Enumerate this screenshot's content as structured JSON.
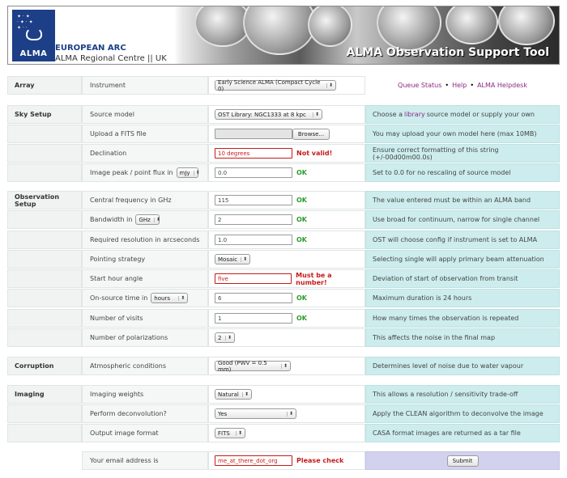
{
  "banner": {
    "logo": "ALMA",
    "arc_line1": "EUROPEAN ARC",
    "arc_line2": "ALMA Regional Centre || UK",
    "title": "ALMA Observation Support Tool"
  },
  "links": {
    "queue": "Queue Status",
    "help": "Help",
    "helpdesk": "ALMA Helpdesk",
    "link_color": "#8b2a85"
  },
  "sections": {
    "array": "Array",
    "sky": "Sky Setup",
    "obs": "Observation Setup",
    "corruption": "Corruption",
    "imaging": "Imaging"
  },
  "fields": {
    "instrument": {
      "label": "Instrument",
      "value": "Early Science ALMA (Compact Cycle 0)"
    },
    "source_model": {
      "label": "Source model",
      "value": "OST Library: NGC1333 at 8 kpc",
      "help_pre": "Choose a ",
      "help_link": "library",
      "help_post": " source model or supply your own"
    },
    "fits": {
      "label": "Upload a FITS file",
      "button": "Browse...",
      "help": "You may upload your own model here (max 10MB)"
    },
    "declination": {
      "label": "Declination",
      "value": "10 degrees",
      "status": "Not valid!",
      "help": "Ensure correct formatting of this string (+/-00d00m00.0s)"
    },
    "peak": {
      "label": "Image peak / point flux in",
      "unit": "mJy",
      "value": "0.0",
      "status": "OK",
      "help": "Set to 0.0 for no rescaling of source model"
    },
    "freq": {
      "label": "Central frequency in GHz",
      "value": "115",
      "status": "OK",
      "help": "The value entered must be within an ALMA band"
    },
    "bandwidth": {
      "label": "Bandwidth in",
      "unit": "GHz",
      "value": "2",
      "status": "OK",
      "help": "Use broad for continuum, narrow for single channel"
    },
    "resolution": {
      "label": "Required resolution in arcseconds",
      "value": "1.0",
      "status": "OK",
      "help": "OST will choose config if instrument is set to ALMA"
    },
    "pointing": {
      "label": "Pointing strategy",
      "value": "Mosaic",
      "help": "Selecting single will apply primary beam attenuation"
    },
    "hour_angle": {
      "label": "Start hour angle",
      "value": "five",
      "status": "Must be a number!",
      "help": "Deviation of start of observation from transit"
    },
    "onsource": {
      "label": "On-source time in",
      "unit": "hours",
      "value": "6",
      "status": "OK",
      "help": "Maximum duration is 24 hours"
    },
    "visits": {
      "label": "Number of visits",
      "value": "1",
      "status": "OK",
      "help": "How many times the observation is repeated"
    },
    "polarizations": {
      "label": "Number of polarizations",
      "value": "2",
      "help": "This affects the noise in the final map"
    },
    "atmosphere": {
      "label": "Atmospheric conditions",
      "value": "Good (PWV = 0.5 mm)",
      "help": "Determines level of noise due to water vapour"
    },
    "weights": {
      "label": "Imaging weights",
      "value": "Natural",
      "help": "This allows a resolution / sensitivity trade-off"
    },
    "deconv": {
      "label": "Perform deconvolution?",
      "value": "Yes",
      "help": "Apply the CLEAN algorithm to deconvolve the image"
    },
    "format": {
      "label": "Output image format",
      "value": "FITS",
      "help": "CASA format images are returned as a tar file"
    },
    "email": {
      "label": "Your email address is",
      "value": "me_at_there_dot_org",
      "status": "Please check",
      "button": "Submit"
    }
  },
  "colors": {
    "ok": "#2c9c2c",
    "error": "#c61b1b",
    "help_bg": "#cdeced",
    "submit_bg": "#d2d2ee"
  }
}
